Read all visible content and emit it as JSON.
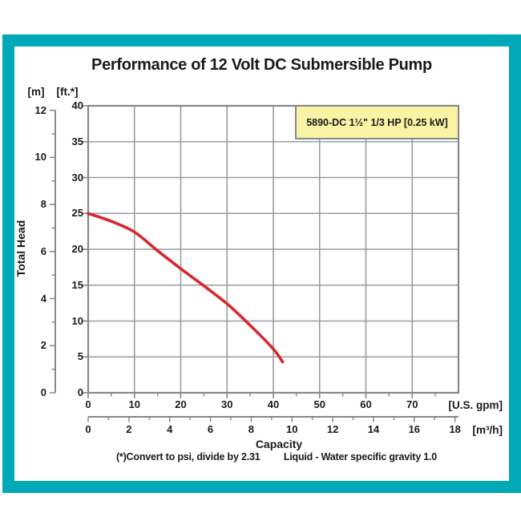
{
  "chart_data": {
    "type": "line",
    "title": "Performance of 12 Volt DC Submersible Pump",
    "annotation_box": "5890-DC 1½\" 1/3 HP [0.25 kW]",
    "x_axis": {
      "label": "Capacity",
      "primary": {
        "unit": "[U.S. gpm]",
        "ticks": [
          0,
          10,
          20,
          30,
          40,
          50,
          60,
          70
        ],
        "minor_step": 5,
        "max": 80
      },
      "secondary": {
        "unit": "[m³/h]",
        "ticks": [
          0,
          2,
          4,
          6,
          8,
          10,
          12,
          14,
          16,
          18
        ],
        "minor_step": 1,
        "max": 18,
        "gpm_per_unit": 4.40287
      }
    },
    "y_axis": {
      "label": "Total Head",
      "primary": {
        "unit": "[ft.*]",
        "ticks": [
          40,
          35,
          30,
          25,
          20,
          15,
          10,
          5,
          0
        ],
        "max": 40
      },
      "secondary": {
        "unit": "[m]",
        "ticks": [
          12,
          10,
          8,
          6,
          4,
          2,
          0
        ],
        "minor_step": 1,
        "max": 12,
        "ft_per_unit": 3.28084
      }
    },
    "grid": {
      "x_step_gpm": 10,
      "y_step_ft": 5,
      "visible": true
    },
    "series": [
      {
        "name": "5890-DC 1½\" 1/3 HP [0.25 kW]",
        "points_gpm_ft": [
          [
            0,
            25
          ],
          [
            5,
            23.9
          ],
          [
            10,
            22.4
          ],
          [
            15,
            19.8
          ],
          [
            20,
            17.3
          ],
          [
            25,
            14.9
          ],
          [
            30,
            12.4
          ],
          [
            35,
            9.4
          ],
          [
            40,
            6.1
          ],
          [
            42,
            4.3
          ]
        ]
      }
    ],
    "footnotes": [
      "(*)Convert to psi, divide by 2.31",
      "Liquid - Water specific gravity 1.0"
    ],
    "colors": {
      "frame": "#00a8b8",
      "curve": "#d7282e",
      "grid": "#9a9da0",
      "plot_border": "#85888b",
      "box_fill": "#f9f3a5",
      "box_border": "#85888b",
      "text": "#1a1a1a"
    }
  }
}
